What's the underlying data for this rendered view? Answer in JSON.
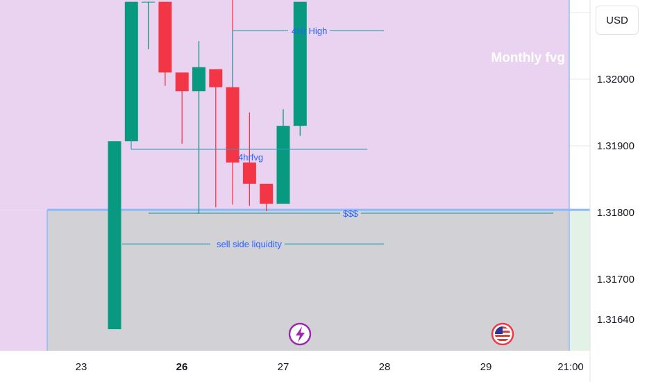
{
  "chart_data": {
    "type": "candlestick",
    "currency": "USD",
    "x_ticks": [
      {
        "label": "23",
        "bold": false
      },
      {
        "label": "26",
        "bold": true
      },
      {
        "label": "27",
        "bold": false
      },
      {
        "label": "28",
        "bold": false
      },
      {
        "label": "29",
        "bold": false
      },
      {
        "label": "21:00",
        "bold": false
      }
    ],
    "y_ticks": [
      "1.32000",
      "1.31900",
      "1.31800",
      "1.31700",
      "1.31640"
    ],
    "candles": [
      {
        "open": 1.31625,
        "high": 1.31907,
        "low": 1.31625,
        "close": 1.31907
      },
      {
        "open": 1.31907,
        "high": 1.32116,
        "low": 1.31907,
        "close": 1.32116
      },
      {
        "open": 1.32116,
        "high": 1.32116,
        "low": 1.32045,
        "close": 1.32116
      },
      {
        "open": 1.32116,
        "high": 1.32116,
        "low": 1.3199,
        "close": 1.3201
      },
      {
        "open": 1.3201,
        "high": 1.3201,
        "low": 1.31903,
        "close": 1.31982
      },
      {
        "open": 1.31982,
        "high": 1.32057,
        "low": 1.31798,
        "close": 1.32018
      },
      {
        "open": 1.32015,
        "high": 1.32015,
        "low": 1.31808,
        "close": 1.31988
      },
      {
        "open": 1.31988,
        "high": 1.3212,
        "low": 1.31812,
        "close": 1.31875
      },
      {
        "open": 1.31875,
        "high": 1.3195,
        "low": 1.3181,
        "close": 1.31843
      },
      {
        "open": 1.31843,
        "high": 1.31843,
        "low": 1.31802,
        "close": 1.31813
      },
      {
        "open": 1.31813,
        "high": 1.31955,
        "low": 1.31813,
        "close": 1.3193
      },
      {
        "open": 1.3193,
        "high": 1.32116,
        "low": 1.31915,
        "close": 1.32116
      }
    ],
    "zones": {
      "upper_label": "Monthly fvg",
      "upper_range": [
        1.31804,
        1.32116
      ],
      "lower_range": [
        1.31625,
        1.31804
      ]
    },
    "annotations": {
      "four_hr_high": {
        "label": "4Hr High",
        "price": 1.32073
      },
      "four_hr_fvg": {
        "label": "4hrfvg",
        "price": 1.31898
      },
      "dollars": {
        "label": "$$$",
        "price": 1.318
      },
      "sell_side": {
        "label": "sell side liquidity",
        "price": 1.31756
      }
    },
    "event_icons": [
      "lightning-event-icon",
      "us-flag-event-icon"
    ],
    "colors": {
      "up": "#089981",
      "down": "#f23645",
      "upper_zone": "#e9d3f0",
      "lower_zone": "#d1d1d6",
      "zone_border": "#90b8f8",
      "annotation": "#2962ff",
      "right_zone": "#e3f2e6"
    }
  }
}
